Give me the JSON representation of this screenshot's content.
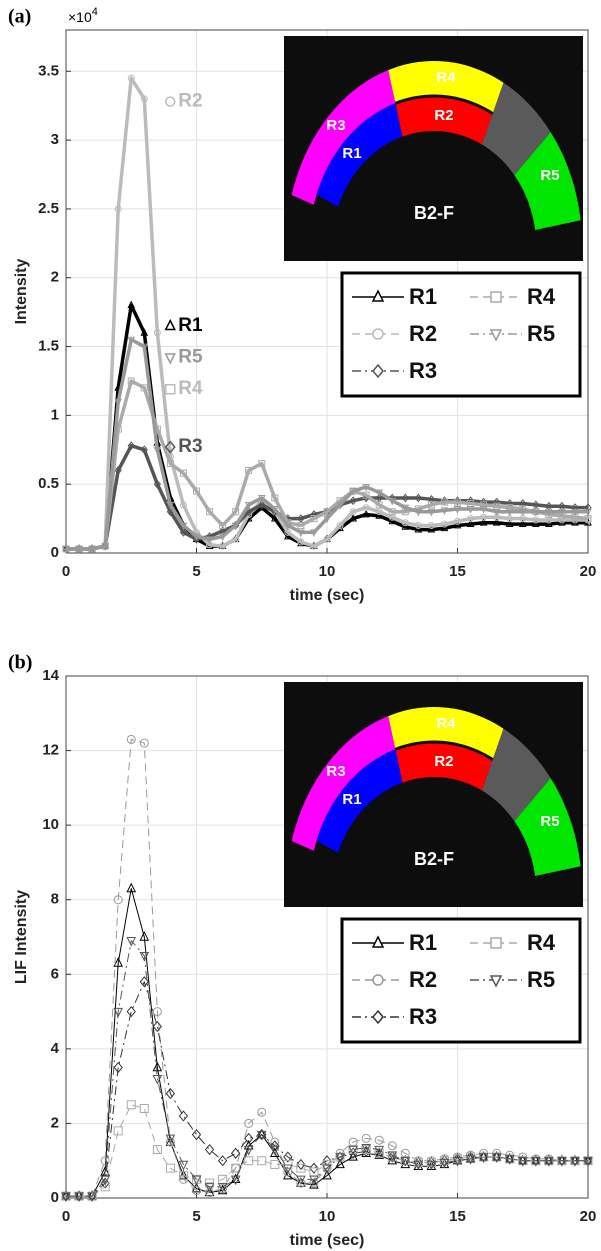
{
  "chart_data": [
    {
      "type": "line",
      "panel_label": "(a)",
      "y_multiplier": {
        "base": "×10",
        "exponent": "4"
      },
      "xlabel": "time (sec)",
      "ylabel": "Intensity",
      "x": [
        0,
        0.5,
        1,
        1.5,
        2,
        2.5,
        3,
        3.5,
        4,
        4.5,
        5,
        5.5,
        6,
        6.5,
        7,
        7.5,
        8,
        8.5,
        9,
        9.5,
        10,
        10.5,
        11,
        11.5,
        12,
        12.5,
        13,
        13.5,
        14,
        14.5,
        15,
        15.5,
        16,
        16.5,
        17,
        17.5,
        18,
        18.5,
        19,
        19.5,
        20
      ],
      "xlim": [
        0,
        20
      ],
      "xticks": [
        0,
        5,
        10,
        15,
        20
      ],
      "ylim": [
        0,
        3.8
      ],
      "yticks": [
        0,
        0.5,
        1,
        1.5,
        2,
        2.5,
        3,
        3.5
      ],
      "grid": true,
      "line_width": 3.5,
      "marker_size": 3,
      "series": [
        {
          "name": "R1",
          "color": "#000000",
          "dash": "solid",
          "marker": "triangle",
          "values": [
            0.03,
            0.03,
            0.03,
            0.05,
            1.2,
            1.8,
            1.6,
            0.8,
            0.4,
            0.2,
            0.1,
            0.05,
            0.05,
            0.1,
            0.25,
            0.33,
            0.25,
            0.12,
            0.07,
            0.05,
            0.1,
            0.18,
            0.25,
            0.28,
            0.27,
            0.23,
            0.19,
            0.17,
            0.17,
            0.18,
            0.2,
            0.21,
            0.22,
            0.22,
            0.21,
            0.21,
            0.21,
            0.21,
            0.22,
            0.22,
            0.22
          ]
        },
        {
          "name": "R2",
          "color": "#bbbbbb",
          "dash": "dashed",
          "marker": "circle",
          "values": [
            0.03,
            0.03,
            0.03,
            0.05,
            2.5,
            3.45,
            3.3,
            1.6,
            0.7,
            0.35,
            0.15,
            0.06,
            0.05,
            0.1,
            0.28,
            0.38,
            0.3,
            0.15,
            0.08,
            0.05,
            0.1,
            0.2,
            0.3,
            0.33,
            0.3,
            0.26,
            0.22,
            0.2,
            0.2,
            0.21,
            0.23,
            0.25,
            0.26,
            0.26,
            0.25,
            0.25,
            0.24,
            0.24,
            0.24,
            0.24,
            0.24
          ]
        },
        {
          "name": "R3",
          "color": "#555555",
          "dash": "dashdot",
          "marker": "diamond",
          "values": [
            0.03,
            0.03,
            0.03,
            0.05,
            0.6,
            0.78,
            0.75,
            0.5,
            0.3,
            0.15,
            0.1,
            0.12,
            0.16,
            0.2,
            0.3,
            0.35,
            0.3,
            0.25,
            0.25,
            0.28,
            0.3,
            0.35,
            0.38,
            0.4,
            0.4,
            0.4,
            0.4,
            0.4,
            0.39,
            0.38,
            0.38,
            0.38,
            0.37,
            0.37,
            0.36,
            0.36,
            0.35,
            0.34,
            0.34,
            0.33,
            0.33
          ]
        },
        {
          "name": "R4",
          "color": "#aaaaaa",
          "dash": "dashed",
          "marker": "square",
          "values": [
            0.03,
            0.03,
            0.03,
            0.05,
            0.9,
            1.25,
            1.2,
            0.9,
            0.65,
            0.58,
            0.45,
            0.3,
            0.2,
            0.3,
            0.6,
            0.65,
            0.4,
            0.22,
            0.2,
            0.25,
            0.3,
            0.38,
            0.45,
            0.42,
            0.35,
            0.3,
            0.3,
            0.32,
            0.35,
            0.37,
            0.37,
            0.36,
            0.35,
            0.34,
            0.33,
            0.32,
            0.3,
            0.28,
            0.27,
            0.26,
            0.25
          ]
        },
        {
          "name": "R5",
          "color": "#999999",
          "dash": "dashdot",
          "marker": "triangle-down",
          "values": [
            0.03,
            0.03,
            0.03,
            0.05,
            1.1,
            1.55,
            1.5,
            0.75,
            0.35,
            0.2,
            0.12,
            0.1,
            0.12,
            0.2,
            0.35,
            0.4,
            0.32,
            0.2,
            0.15,
            0.15,
            0.25,
            0.35,
            0.45,
            0.48,
            0.44,
            0.38,
            0.33,
            0.3,
            0.3,
            0.31,
            0.32,
            0.32,
            0.32,
            0.3,
            0.3,
            0.3,
            0.3,
            0.3,
            0.3,
            0.3,
            0.3
          ]
        }
      ],
      "annotations": [
        {
          "text": "R2",
          "x": 4.3,
          "y": 3.28,
          "color": "#bbbbbb",
          "marker": "circle"
        },
        {
          "text": "R1",
          "x": 4.3,
          "y": 1.65,
          "color": "#000000",
          "marker": "triangle"
        },
        {
          "text": "R5",
          "x": 4.3,
          "y": 1.42,
          "color": "#999999",
          "marker": "triangle-down"
        },
        {
          "text": "R4",
          "x": 4.3,
          "y": 1.19,
          "color": "#bbbbbb",
          "marker": "square"
        },
        {
          "text": "R3",
          "x": 4.3,
          "y": 0.77,
          "color": "#555555",
          "marker": "diamond"
        }
      ],
      "inset": {
        "regions": [
          "R1",
          "R2",
          "R3",
          "R4",
          "R5"
        ],
        "caption": "B2-F"
      }
    },
    {
      "type": "line",
      "panel_label": "(b)",
      "xlabel": "time (sec)",
      "ylabel": "LIF Intensity",
      "x": [
        0,
        0.5,
        1,
        1.5,
        2,
        2.5,
        3,
        3.5,
        4,
        4.5,
        5,
        5.5,
        6,
        6.5,
        7,
        7.5,
        8,
        8.5,
        9,
        9.5,
        10,
        10.5,
        11,
        11.5,
        12,
        12.5,
        13,
        13.5,
        14,
        14.5,
        15,
        15.5,
        16,
        16.5,
        17,
        17.5,
        18,
        18.5,
        19,
        19.5,
        20
      ],
      "xlim": [
        0,
        20
      ],
      "xticks": [
        0,
        5,
        10,
        15,
        20
      ],
      "ylim": [
        0,
        14
      ],
      "yticks": [
        0,
        2,
        4,
        6,
        8,
        10,
        12,
        14
      ],
      "grid": true,
      "line_width": 1,
      "marker_size": 4,
      "series": [
        {
          "name": "R1",
          "color": "#000000",
          "dash": "solid",
          "marker": "triangle",
          "values": [
            0.05,
            0.05,
            0.05,
            0.7,
            6.3,
            8.3,
            7.0,
            3.5,
            1.5,
            0.6,
            0.25,
            0.15,
            0.2,
            0.5,
            1.4,
            1.7,
            1.2,
            0.6,
            0.4,
            0.35,
            0.6,
            0.9,
            1.1,
            1.2,
            1.15,
            1.0,
            0.9,
            0.85,
            0.85,
            0.9,
            1.0,
            1.05,
            1.1,
            1.1,
            1.05,
            1.0,
            1.0,
            1.0,
            1.0,
            1.0,
            1.0
          ]
        },
        {
          "name": "R2",
          "color": "#999999",
          "dash": "dashed",
          "marker": "circle",
          "values": [
            0.05,
            0.05,
            0.05,
            1.0,
            8.0,
            12.3,
            12.2,
            5.0,
            1.5,
            0.5,
            0.2,
            0.15,
            0.25,
            0.8,
            2.0,
            2.3,
            1.5,
            0.7,
            0.4,
            0.4,
            0.8,
            1.2,
            1.5,
            1.6,
            1.55,
            1.4,
            1.2,
            1.0,
            1.0,
            1.05,
            1.1,
            1.15,
            1.2,
            1.2,
            1.15,
            1.1,
            1.05,
            1.05,
            1.0,
            1.0,
            1.0
          ]
        },
        {
          "name": "R3",
          "color": "#333333",
          "dash": "dashdot",
          "marker": "diamond",
          "values": [
            0.05,
            0.05,
            0.05,
            0.4,
            3.5,
            5.0,
            5.8,
            4.6,
            2.8,
            2.2,
            1.7,
            1.3,
            1.0,
            1.2,
            1.6,
            1.7,
            1.4,
            1.1,
            0.9,
            0.8,
            1.0,
            1.1,
            1.2,
            1.25,
            1.2,
            1.1,
            1.0,
            0.95,
            0.95,
            1.0,
            1.05,
            1.1,
            1.1,
            1.1,
            1.05,
            1.0,
            1.0,
            1.0,
            1.0,
            1.0,
            1.0
          ]
        },
        {
          "name": "R4",
          "color": "#aaaaaa",
          "dash": "dashed",
          "marker": "square",
          "values": [
            0.05,
            0.05,
            0.05,
            0.3,
            1.8,
            2.5,
            2.4,
            1.3,
            0.8,
            0.6,
            0.5,
            0.4,
            0.5,
            0.8,
            1.0,
            1.0,
            0.9,
            0.9,
            0.8,
            0.7,
            0.9,
            1.1,
            1.3,
            1.3,
            1.2,
            1.1,
            1.0,
            0.95,
            0.95,
            1.0,
            1.05,
            1.1,
            1.1,
            1.1,
            1.05,
            1.0,
            1.0,
            1.0,
            1.0,
            1.0,
            1.0
          ]
        },
        {
          "name": "R5",
          "color": "#555555",
          "dash": "dashdot",
          "marker": "triangle-down",
          "values": [
            0.05,
            0.05,
            0.05,
            0.5,
            5.0,
            6.9,
            6.5,
            3.2,
            1.6,
            0.9,
            0.5,
            0.3,
            0.3,
            0.5,
            1.3,
            1.7,
            1.3,
            0.8,
            0.5,
            0.5,
            0.8,
            1.1,
            1.3,
            1.35,
            1.3,
            1.15,
            1.0,
            0.9,
            0.9,
            0.95,
            1.0,
            1.05,
            1.1,
            1.1,
            1.05,
            1.0,
            1.0,
            1.0,
            1.0,
            1.0,
            1.0
          ]
        }
      ],
      "inset": {
        "regions": [
          "R1",
          "R2",
          "R3",
          "R4",
          "R5"
        ],
        "caption": "B2-F"
      }
    }
  ]
}
